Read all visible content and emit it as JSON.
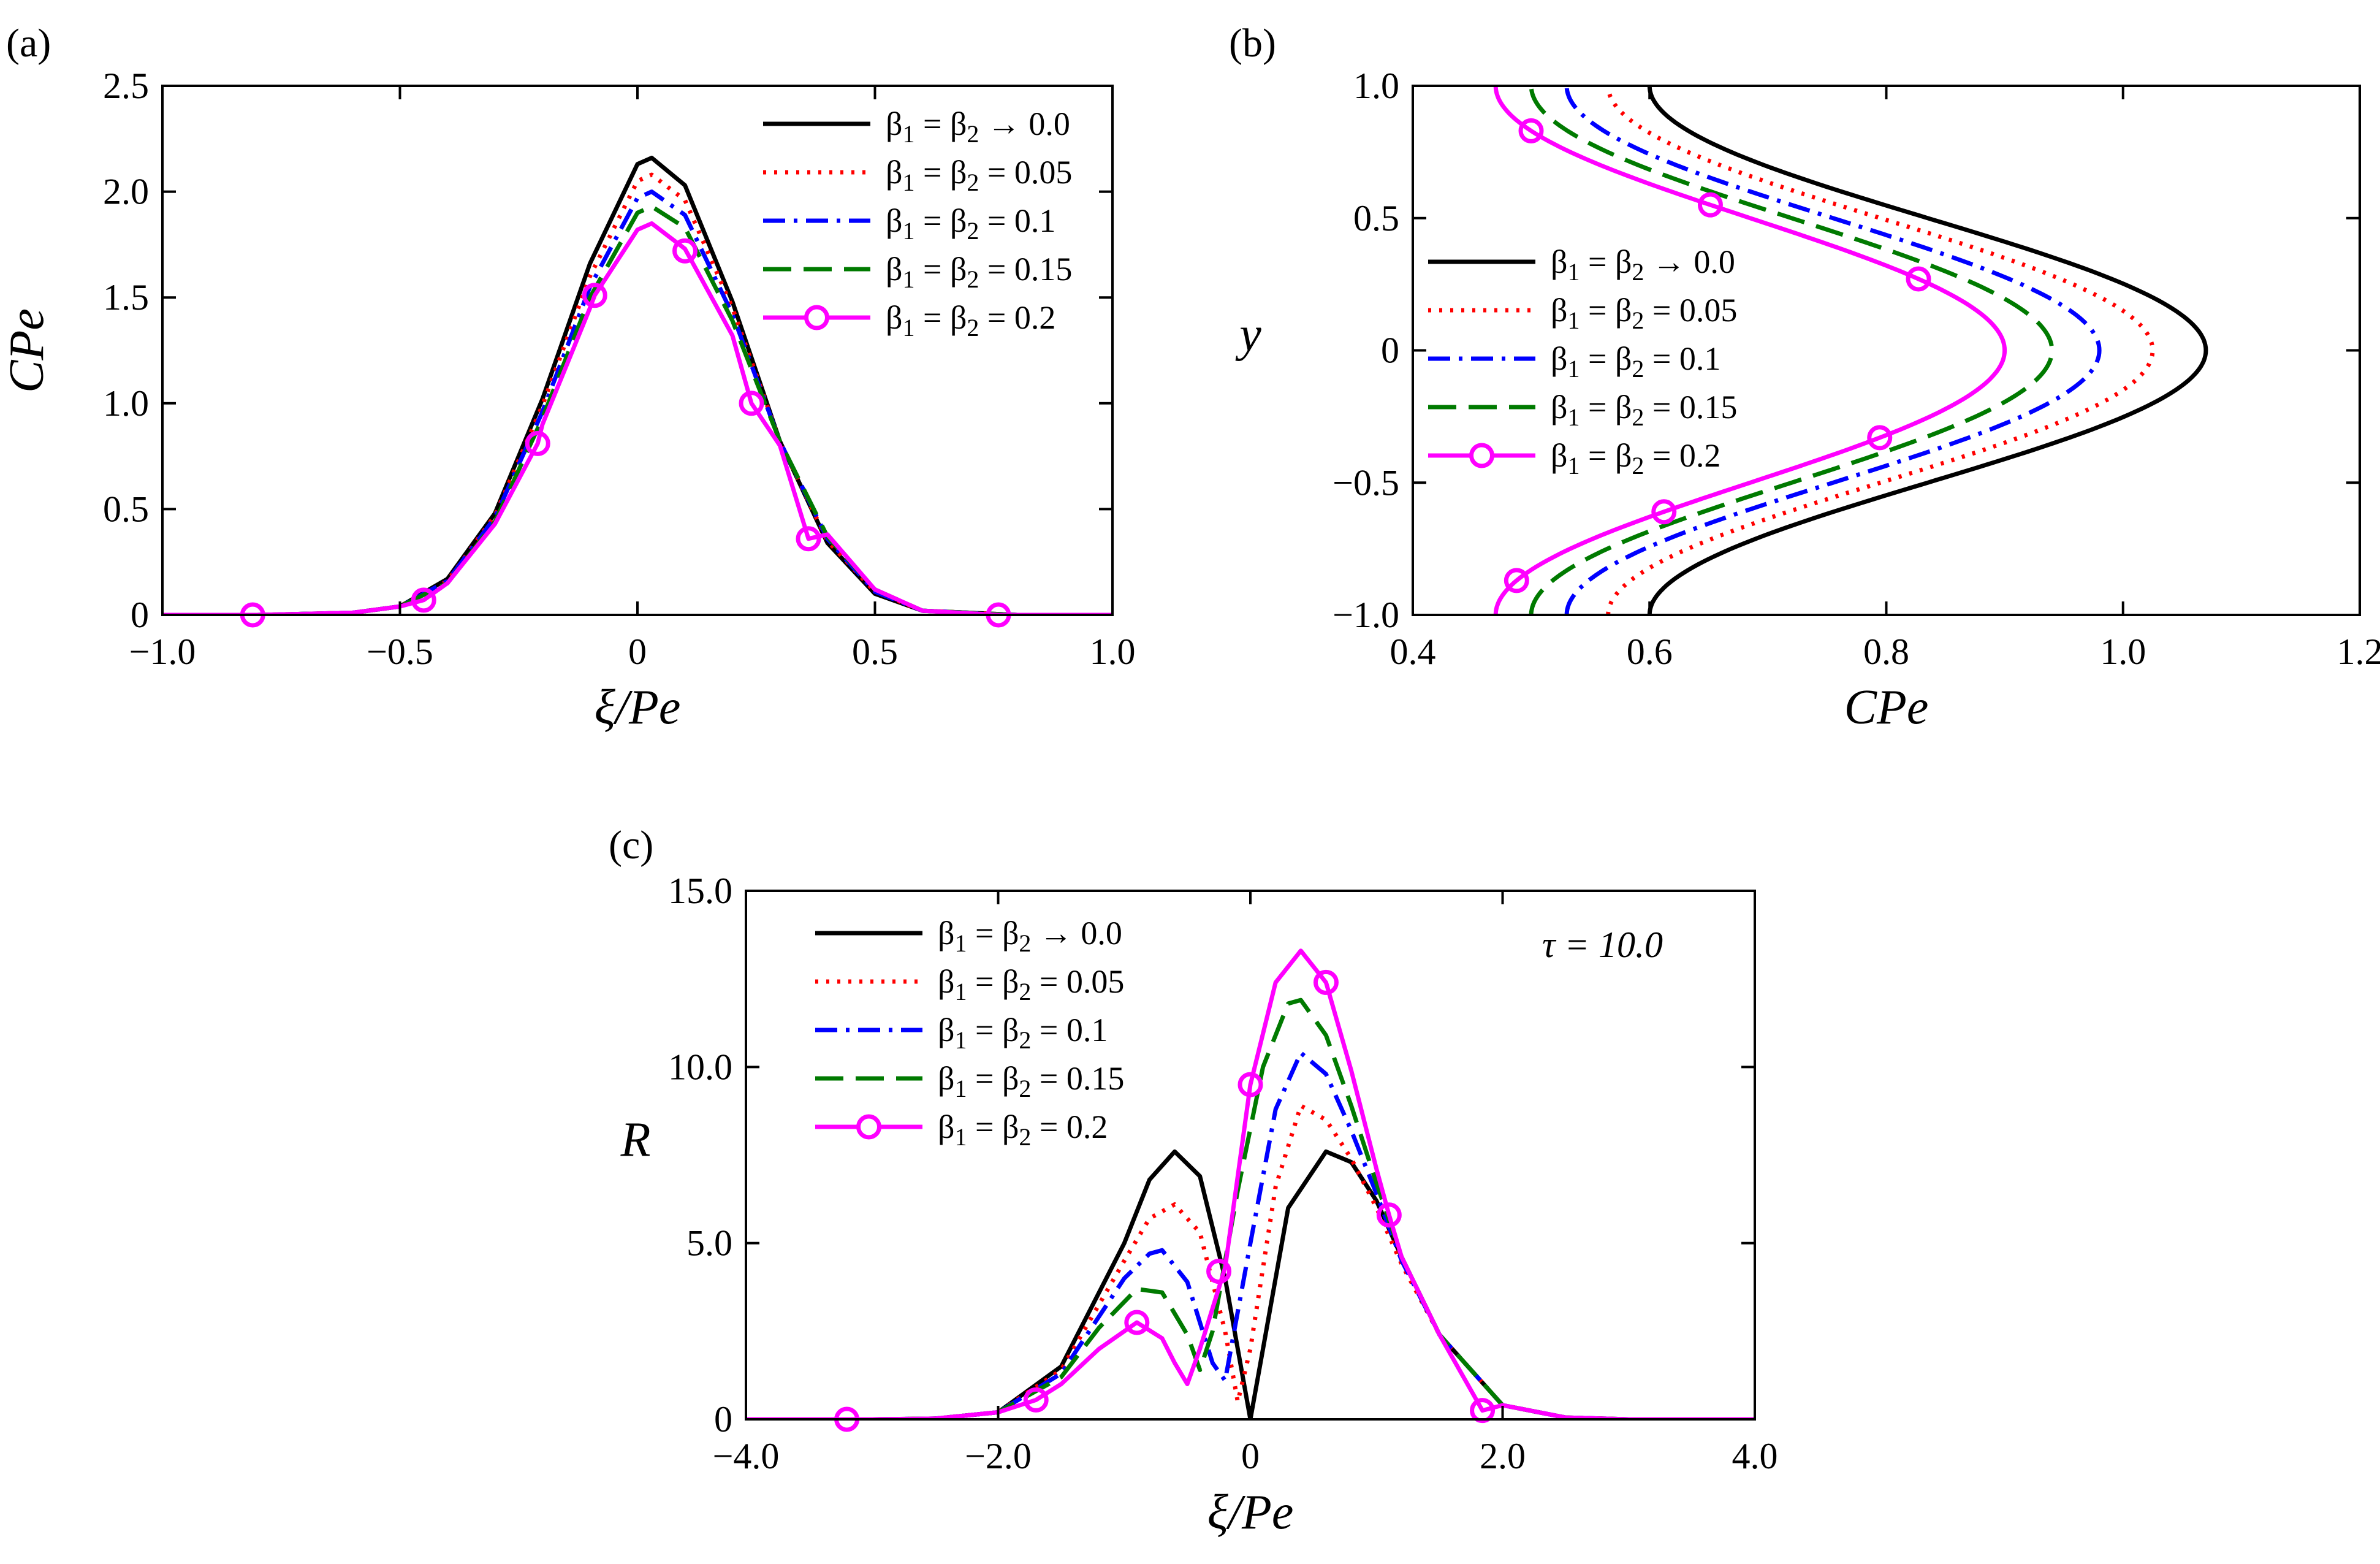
{
  "chart_data": [
    {
      "panel_label": "(a)",
      "type": "line",
      "xlabel": "ξ/Pe",
      "ylabel": "CPe",
      "xlim": [
        -1.0,
        1.0
      ],
      "ylim": [
        0,
        2.5
      ],
      "xticks": [
        -1.0,
        -0.5,
        0,
        0.5,
        1.0
      ],
      "xtick_labels": [
        "−1.0",
        "−0.5",
        "0",
        "0.5",
        "1.0"
      ],
      "yticks": [
        0,
        0.5,
        1.0,
        1.5,
        2.0,
        2.5
      ],
      "ytick_labels": [
        "0",
        "0.5",
        "1.0",
        "1.5",
        "2.0",
        "2.5"
      ],
      "legend_position": "top-right",
      "series": [
        {
          "name": "β1 = β2 → 0.0",
          "color": "#000000",
          "style": "solid",
          "x": [
            -1.0,
            -0.8,
            -0.6,
            -0.5,
            -0.4,
            -0.3,
            -0.2,
            -0.1,
            0.0,
            0.03,
            0.1,
            0.2,
            0.3,
            0.4,
            0.5,
            0.6,
            0.8,
            1.0
          ],
          "y": [
            0,
            0,
            0.01,
            0.04,
            0.17,
            0.48,
            1.02,
            1.66,
            2.13,
            2.16,
            2.03,
            1.48,
            0.82,
            0.34,
            0.1,
            0.02,
            0,
            0
          ]
        },
        {
          "name": "β1 = β2 = 0.05",
          "color": "#ff0000",
          "style": "dotted",
          "x": [
            -1.0,
            -0.8,
            -0.6,
            -0.5,
            -0.4,
            -0.3,
            -0.2,
            -0.1,
            0.0,
            0.03,
            0.1,
            0.2,
            0.3,
            0.4,
            0.5,
            0.6,
            0.8,
            1.0
          ],
          "y": [
            0,
            0,
            0.01,
            0.04,
            0.16,
            0.47,
            0.99,
            1.6,
            2.05,
            2.08,
            1.96,
            1.45,
            0.82,
            0.35,
            0.11,
            0.02,
            0,
            0
          ]
        },
        {
          "name": "β1 = β2 = 0.1",
          "color": "#0000ff",
          "style": "dashdot",
          "x": [
            -1.0,
            -0.8,
            -0.6,
            -0.5,
            -0.4,
            -0.3,
            -0.2,
            -0.1,
            0.0,
            0.03,
            0.1,
            0.2,
            0.3,
            0.4,
            0.5,
            0.6,
            0.8,
            1.0
          ],
          "y": [
            0,
            0,
            0.01,
            0.04,
            0.16,
            0.46,
            0.96,
            1.55,
            1.97,
            2.0,
            1.89,
            1.42,
            0.82,
            0.36,
            0.11,
            0.02,
            0,
            0
          ]
        },
        {
          "name": "β1 = β2 = 0.15",
          "color": "#007a00",
          "style": "dashed",
          "x": [
            -1.0,
            -0.8,
            -0.6,
            -0.5,
            -0.4,
            -0.3,
            -0.2,
            -0.1,
            0.0,
            0.03,
            0.1,
            0.2,
            0.3,
            0.4,
            0.5,
            0.6,
            0.8,
            1.0
          ],
          "y": [
            0,
            0,
            0.01,
            0.04,
            0.15,
            0.44,
            0.93,
            1.5,
            1.9,
            1.93,
            1.83,
            1.39,
            0.82,
            0.37,
            0.12,
            0.02,
            0,
            0
          ]
        },
        {
          "name": "β1 = β2 = 0.2",
          "color": "#ff00ff",
          "style": "solid-circles",
          "x": [
            -1.0,
            -0.8,
            -0.6,
            -0.5,
            -0.45,
            -0.4,
            -0.3,
            -0.21,
            -0.2,
            -0.1,
            -0.09,
            0.0,
            0.03,
            0.1,
            0.2,
            0.24,
            0.3,
            0.36,
            0.4,
            0.5,
            0.6,
            0.76,
            0.8,
            1.0
          ],
          "y": [
            0,
            0,
            0.01,
            0.04,
            0.07,
            0.15,
            0.43,
            0.81,
            0.9,
            1.45,
            1.51,
            1.82,
            1.85,
            1.73,
            1.32,
            1.0,
            0.8,
            0.36,
            0.38,
            0.12,
            0.02,
            0,
            0,
            0
          ],
          "markers_x": [
            -0.81,
            -0.45,
            -0.21,
            -0.09,
            0.1,
            0.24,
            0.36,
            0.76
          ],
          "markers_y": [
            0,
            0.07,
            0.81,
            1.51,
            1.72,
            1.0,
            0.36,
            0
          ]
        }
      ]
    },
    {
      "panel_label": "(b)",
      "type": "line",
      "xlabel": "CPe",
      "ylabel": "y",
      "xlim": [
        0.4,
        1.2
      ],
      "ylim": [
        -1.0,
        1.0
      ],
      "xticks": [
        0.4,
        0.6,
        0.8,
        1.0,
        1.2
      ],
      "xtick_labels": [
        "0.4",
        "0.6",
        "0.8",
        "1.0",
        "1.2"
      ],
      "yticks": [
        -1.0,
        -0.5,
        0,
        0.5,
        1.0
      ],
      "ytick_labels": [
        "−1.0",
        "−0.5",
        "0",
        "0.5",
        "1.0"
      ],
      "legend_position": "center-left",
      "series": [
        {
          "name": "β1 = β2 → 0.0",
          "color": "#000000",
          "style": "solid",
          "cmin": 0.6,
          "cmax": 1.07
        },
        {
          "name": "β1 = β2 = 0.05",
          "color": "#ff0000",
          "style": "dotted",
          "cmin": 0.565,
          "cmax": 1.025
        },
        {
          "name": "β1 = β2 = 0.1",
          "color": "#0000ff",
          "style": "dashdot",
          "cmin": 0.53,
          "cmax": 0.98
        },
        {
          "name": "β1 = β2 = 0.15",
          "color": "#007a00",
          "style": "dashed",
          "cmin": 0.5,
          "cmax": 0.94
        },
        {
          "name": "β1 = β2 = 0.2",
          "color": "#ff00ff",
          "style": "solid-circles",
          "cmin": 0.47,
          "cmax": 0.9,
          "markers_y": [
            0.83,
            0.55,
            0.27,
            -0.33,
            -0.61,
            -0.87
          ]
        }
      ]
    },
    {
      "panel_label": "(c)",
      "type": "line",
      "xlabel": "ξ/Pe",
      "ylabel": "R",
      "annotation": "τ = 10.0",
      "xlim": [
        -4.0,
        4.0
      ],
      "ylim": [
        0,
        15.0
      ],
      "xticks": [
        -4.0,
        -2.0,
        0,
        2.0,
        4.0
      ],
      "xtick_labels": [
        "−4.0",
        "−2.0",
        "0",
        "2.0",
        "4.0"
      ],
      "yticks": [
        0,
        5.0,
        10.0,
        15.0
      ],
      "ytick_labels": [
        "0",
        "5.0",
        "10.0",
        "15.0"
      ],
      "legend_position": "top-left",
      "series": [
        {
          "name": "β1 = β2 → 0.0",
          "color": "#000000",
          "style": "solid",
          "x": [
            -4.0,
            -3.0,
            -2.5,
            -2.0,
            -1.5,
            -1.0,
            -0.8,
            -0.6,
            -0.4,
            -0.2,
            0.0,
            0.1,
            0.3,
            0.6,
            0.8,
            1.0,
            1.2,
            1.5,
            2.0,
            2.5,
            3.0,
            4.0
          ],
          "y": [
            0,
            0,
            0.02,
            0.2,
            1.5,
            5.0,
            6.8,
            7.6,
            6.9,
            4.0,
            0,
            2.0,
            6.0,
            7.6,
            7.3,
            6.2,
            4.6,
            2.4,
            0.4,
            0.05,
            0,
            0
          ]
        },
        {
          "name": "β1 = β2 = 0.05",
          "color": "#ff0000",
          "style": "dotted",
          "x": [
            -4.0,
            -3.0,
            -2.5,
            -2.0,
            -1.5,
            -1.0,
            -0.8,
            -0.6,
            -0.4,
            -0.2,
            -0.1,
            0.0,
            0.2,
            0.4,
            0.6,
            0.8,
            1.0,
            1.2,
            1.5,
            2.0,
            2.5,
            3.0,
            4.0
          ],
          "y": [
            0,
            0,
            0.02,
            0.2,
            1.4,
            4.5,
            5.7,
            6.1,
            5.3,
            2.5,
            0.5,
            2.0,
            6.6,
            8.9,
            8.5,
            7.4,
            6.0,
            4.4,
            2.4,
            0.4,
            0.05,
            0,
            0
          ]
        },
        {
          "name": "β1 = β2 = 0.1",
          "color": "#0000ff",
          "style": "dashdot",
          "x": [
            -4.0,
            -3.0,
            -2.5,
            -2.0,
            -1.5,
            -1.0,
            -0.8,
            -0.7,
            -0.5,
            -0.3,
            -0.2,
            0.0,
            0.2,
            0.4,
            0.6,
            0.8,
            1.0,
            1.2,
            1.5,
            2.0,
            2.5,
            3.0,
            4.0
          ],
          "y": [
            0,
            0,
            0.02,
            0.2,
            1.3,
            4.0,
            4.7,
            4.8,
            3.9,
            1.6,
            1.1,
            5.0,
            8.8,
            10.4,
            9.8,
            8.2,
            6.4,
            4.5,
            2.4,
            0.4,
            0.05,
            0,
            0
          ]
        },
        {
          "name": "β1 = β2 = 0.15",
          "color": "#007a00",
          "style": "dashed",
          "x": [
            -4.0,
            -3.0,
            -2.5,
            -2.0,
            -1.5,
            -1.2,
            -0.9,
            -0.7,
            -0.5,
            -0.4,
            -0.3,
            -0.1,
            0.1,
            0.3,
            0.4,
            0.6,
            0.8,
            1.0,
            1.2,
            1.5,
            2.0,
            2.5,
            3.0,
            4.0
          ],
          "y": [
            0,
            0,
            0.02,
            0.2,
            1.2,
            2.6,
            3.7,
            3.6,
            2.4,
            1.4,
            2.5,
            6.5,
            10.0,
            11.8,
            11.9,
            10.9,
            8.9,
            6.7,
            4.6,
            2.4,
            0.4,
            0.05,
            0,
            0
          ]
        },
        {
          "name": "β1 = β2 = 0.2",
          "color": "#ff00ff",
          "style": "solid-circles",
          "x": [
            -4.0,
            -3.0,
            -2.5,
            -2.0,
            -1.7,
            -1.5,
            -1.2,
            -0.9,
            -0.7,
            -0.6,
            -0.5,
            -0.4,
            -0.2,
            0.0,
            0.2,
            0.4,
            0.6,
            0.8,
            1.0,
            1.1,
            1.2,
            1.5,
            1.84,
            2.0,
            2.5,
            3.0,
            4.0
          ],
          "y": [
            0,
            0,
            0.02,
            0.2,
            0.55,
            1.0,
            2.0,
            2.75,
            2.3,
            1.6,
            1.0,
            2.0,
            4.3,
            9.5,
            12.4,
            13.3,
            12.4,
            9.9,
            7.1,
            5.8,
            4.6,
            2.4,
            0.25,
            0.4,
            0.05,
            0,
            0
          ],
          "markers_x": [
            -3.2,
            -1.7,
            -0.9,
            -0.25,
            0.0,
            0.6,
            1.1,
            1.84
          ],
          "markers_y": [
            0,
            0.55,
            2.75,
            4.2,
            9.5,
            12.4,
            5.8,
            0.25
          ]
        }
      ]
    }
  ]
}
